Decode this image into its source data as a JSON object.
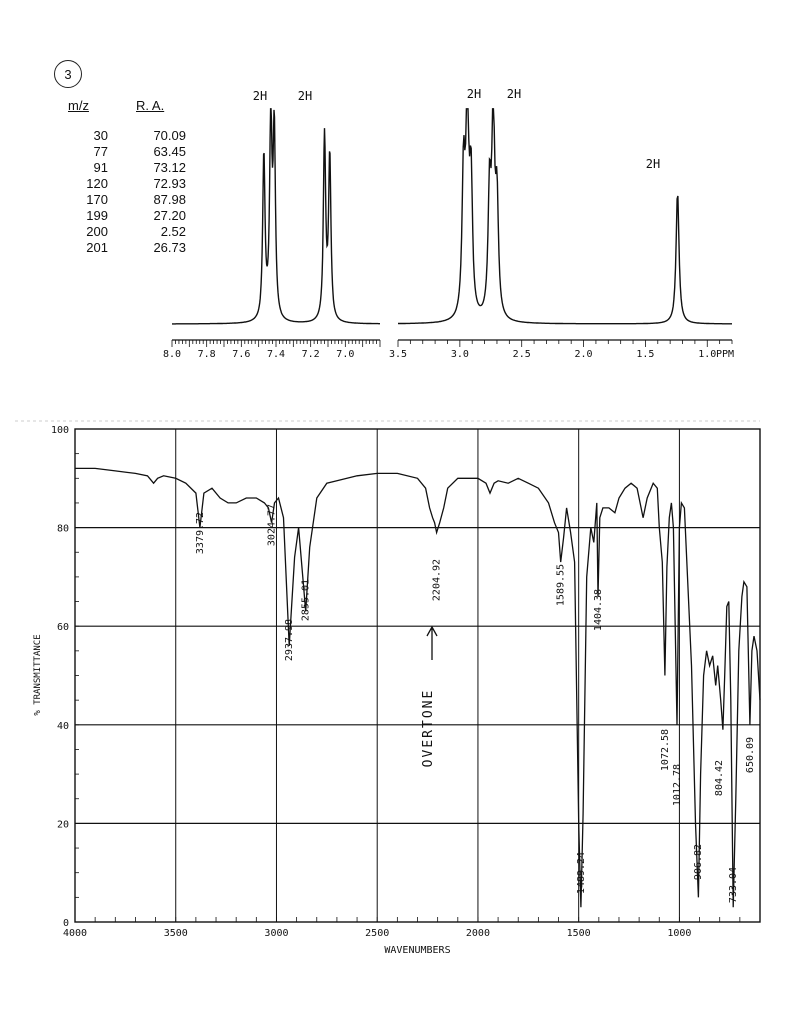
{
  "problem_number": "3",
  "mass_spec": {
    "headers": [
      "m/z",
      "R. A."
    ],
    "rows": [
      [
        "30",
        "70.09"
      ],
      [
        "77",
        "63.45"
      ],
      [
        "91",
        "73.12"
      ],
      [
        "120",
        "72.93"
      ],
      [
        "170",
        "87.98"
      ],
      [
        "199",
        "27.20"
      ],
      [
        "200",
        "2.52"
      ],
      [
        "201",
        "26.73"
      ]
    ]
  },
  "chart_data": [
    {
      "type": "line",
      "name": "nmr",
      "x_unit_label": "PPM",
      "panels": [
        {
          "xlim": [
            8.0,
            6.8
          ],
          "ticks": [
            "8.0",
            "7.8",
            "7.6",
            "7.4",
            "7.2",
            "7.0"
          ],
          "tick_values": [
            8.0,
            7.8,
            7.6,
            7.4,
            7.2,
            7.0
          ]
        },
        {
          "xlim": [
            3.5,
            0.8
          ],
          "ticks": [
            "3.5",
            "3.0",
            "2.5",
            "2.0",
            "1.5",
            "1.0"
          ],
          "tick_values": [
            3.5,
            3.0,
            2.5,
            2.0,
            1.5,
            1.0
          ]
        }
      ],
      "peaks": [
        {
          "ppm": 7.47,
          "height": 0.8
        },
        {
          "ppm": 7.43,
          "height": 1.0
        },
        {
          "ppm": 7.41,
          "height": 0.9
        },
        {
          "ppm": 7.12,
          "height": 0.9
        },
        {
          "ppm": 7.09,
          "height": 0.8
        },
        {
          "ppm": 2.97,
          "height": 0.7
        },
        {
          "ppm": 2.94,
          "height": 1.0
        },
        {
          "ppm": 2.91,
          "height": 0.65
        },
        {
          "ppm": 2.76,
          "height": 0.6
        },
        {
          "ppm": 2.73,
          "height": 0.95
        },
        {
          "ppm": 2.7,
          "height": 0.55
        },
        {
          "ppm": 1.24,
          "height": 0.65
        }
      ],
      "integration_labels": [
        {
          "text": "2H",
          "ppm": 7.43
        },
        {
          "text": "2H",
          "ppm": 7.1
        },
        {
          "text": "2H",
          "ppm": 2.93
        },
        {
          "text": "2H",
          "ppm": 2.72
        },
        {
          "text": "2H",
          "ppm": 1.3
        }
      ]
    },
    {
      "type": "line",
      "name": "ir",
      "xlabel": "WAVENUMBERS",
      "ylabel": "% TRANSMITTANCE",
      "xlim": [
        4000,
        600
      ],
      "ylim": [
        0,
        100
      ],
      "grid": true,
      "x_ticks": [
        4000,
        3500,
        3000,
        2500,
        2000,
        1500,
        1000
      ],
      "x_tick_labels": [
        "4000",
        "3500",
        "3000",
        "2500",
        "2000",
        "1500",
        "1000"
      ],
      "y_ticks": [
        0,
        20,
        40,
        60,
        80,
        100
      ],
      "y_tick_labels": [
        "0",
        "20",
        "40",
        "60",
        "80",
        "100"
      ],
      "points": [
        [
          4000,
          92
        ],
        [
          3900,
          92
        ],
        [
          3800,
          91.5
        ],
        [
          3700,
          91
        ],
        [
          3640,
          90.5
        ],
        [
          3610,
          89
        ],
        [
          3590,
          90
        ],
        [
          3560,
          90.5
        ],
        [
          3500,
          90
        ],
        [
          3450,
          89
        ],
        [
          3400,
          87
        ],
        [
          3380,
          80
        ],
        [
          3360,
          87
        ],
        [
          3320,
          88
        ],
        [
          3280,
          86
        ],
        [
          3240,
          85
        ],
        [
          3200,
          85
        ],
        [
          3150,
          86
        ],
        [
          3100,
          86
        ],
        [
          3060,
          85
        ],
        [
          3040,
          84
        ],
        [
          3024,
          81
        ],
        [
          3010,
          85
        ],
        [
          2990,
          86
        ],
        [
          2965,
          82
        ],
        [
          2937,
          56
        ],
        [
          2910,
          74
        ],
        [
          2890,
          80
        ],
        [
          2855,
          63
        ],
        [
          2835,
          76
        ],
        [
          2800,
          86
        ],
        [
          2750,
          89
        ],
        [
          2700,
          89.5
        ],
        [
          2600,
          90.5
        ],
        [
          2500,
          91
        ],
        [
          2400,
          91
        ],
        [
          2300,
          90
        ],
        [
          2260,
          88
        ],
        [
          2240,
          84
        ],
        [
          2225,
          82
        ],
        [
          2215,
          81
        ],
        [
          2205,
          79
        ],
        [
          2190,
          81
        ],
        [
          2170,
          84
        ],
        [
          2150,
          88
        ],
        [
          2100,
          90
        ],
        [
          2050,
          90
        ],
        [
          2000,
          90
        ],
        [
          1960,
          89
        ],
        [
          1940,
          87
        ],
        [
          1920,
          89
        ],
        [
          1900,
          89.5
        ],
        [
          1850,
          89
        ],
        [
          1800,
          90
        ],
        [
          1750,
          89
        ],
        [
          1700,
          88
        ],
        [
          1650,
          85
        ],
        [
          1620,
          81
        ],
        [
          1600,
          79
        ],
        [
          1589,
          73
        ],
        [
          1575,
          78
        ],
        [
          1560,
          84
        ],
        [
          1540,
          79
        ],
        [
          1520,
          73
        ],
        [
          1500,
          20
        ],
        [
          1489,
          3
        ],
        [
          1478,
          22
        ],
        [
          1460,
          70
        ],
        [
          1440,
          80
        ],
        [
          1425,
          77
        ],
        [
          1410,
          85
        ],
        [
          1404,
          66
        ],
        [
          1395,
          82
        ],
        [
          1380,
          84
        ],
        [
          1350,
          84
        ],
        [
          1320,
          83
        ],
        [
          1300,
          86
        ],
        [
          1270,
          88
        ],
        [
          1240,
          89
        ],
        [
          1210,
          88
        ],
        [
          1180,
          82
        ],
        [
          1160,
          86
        ],
        [
          1130,
          89
        ],
        [
          1110,
          88
        ],
        [
          1100,
          80
        ],
        [
          1085,
          73
        ],
        [
          1072,
          50
        ],
        [
          1062,
          72
        ],
        [
          1050,
          82
        ],
        [
          1040,
          85
        ],
        [
          1030,
          80
        ],
        [
          1012,
          40
        ],
        [
          1000,
          80
        ],
        [
          990,
          85
        ],
        [
          975,
          84
        ],
        [
          960,
          70
        ],
        [
          940,
          52
        ],
        [
          920,
          20
        ],
        [
          906,
          5
        ],
        [
          895,
          30
        ],
        [
          880,
          50
        ],
        [
          865,
          55
        ],
        [
          850,
          52
        ],
        [
          835,
          54
        ],
        [
          820,
          48
        ],
        [
          810,
          52
        ],
        [
          795,
          45
        ],
        [
          784,
          39
        ],
        [
          775,
          50
        ],
        [
          765,
          64
        ],
        [
          755,
          65
        ],
        [
          745,
          45
        ],
        [
          733,
          3
        ],
        [
          720,
          25
        ],
        [
          705,
          55
        ],
        [
          690,
          66
        ],
        [
          680,
          69
        ],
        [
          665,
          68
        ],
        [
          650,
          40
        ],
        [
          640,
          55
        ],
        [
          630,
          58
        ],
        [
          615,
          55
        ],
        [
          600,
          45
        ]
      ],
      "peak_labels": [
        {
          "text": "3379.72",
          "x": 3379.72
        },
        {
          "text": "3024.77",
          "x": 3024.77
        },
        {
          "text": "2937.98",
          "x": 2937.98
        },
        {
          "text": "2855.01",
          "x": 2855.01
        },
        {
          "text": "2204.92",
          "x": 2204.92
        },
        {
          "text": "1589.55",
          "x": 1589.55
        },
        {
          "text": "1489.24",
          "x": 1489.24
        },
        {
          "text": "1404.38",
          "x": 1404.38
        },
        {
          "text": "1072.58",
          "x": 1072.58
        },
        {
          "text": "1012.78",
          "x": 1012.78
        },
        {
          "text": "906.82",
          "x": 906.82
        },
        {
          "text": "804.42",
          "x": 804.42
        },
        {
          "text": "733.04",
          "x": 733.04
        },
        {
          "text": "650.09",
          "x": 650.09
        }
      ],
      "annotation": "OVERTONE"
    }
  ]
}
